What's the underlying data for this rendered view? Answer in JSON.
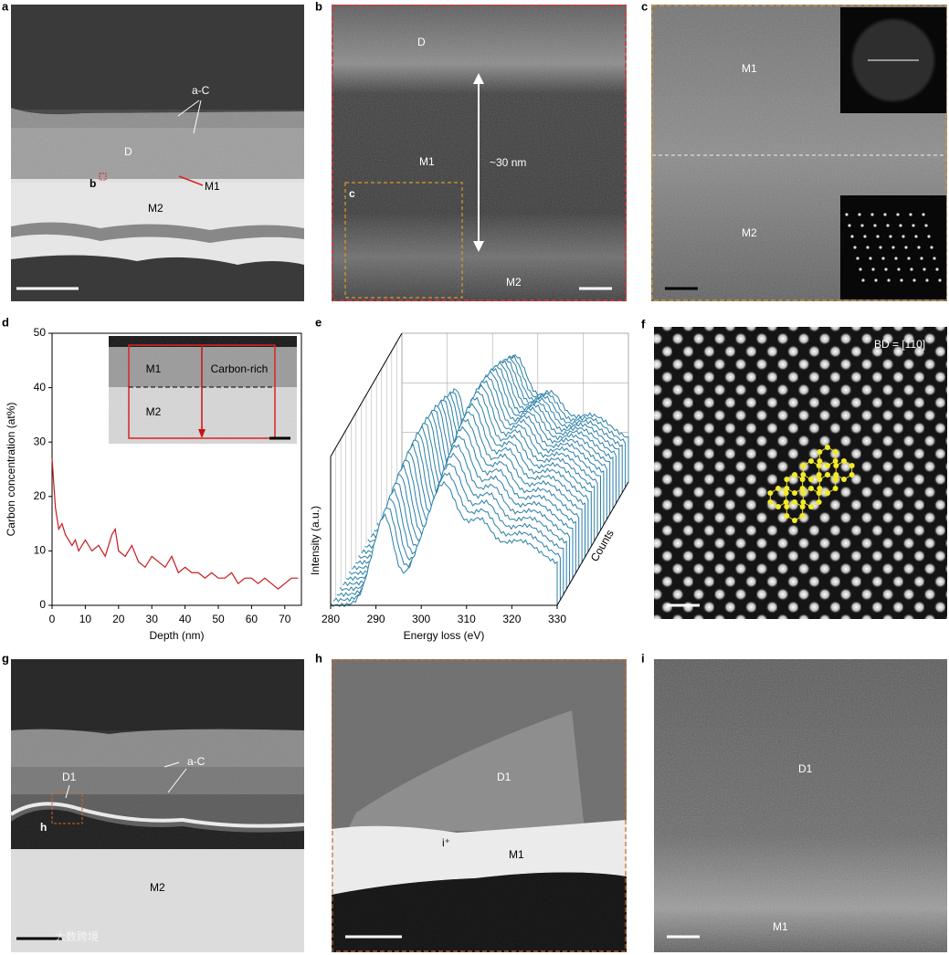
{
  "figure": {
    "panels": [
      {
        "letter": "a",
        "labels": [
          "a-C",
          "D",
          "b",
          "M1",
          "M2"
        ]
      },
      {
        "letter": "b",
        "labels": [
          "D",
          "M1",
          "~30 nm",
          "c",
          "M2"
        ]
      },
      {
        "letter": "c",
        "labels": [
          "M1",
          "M2"
        ]
      },
      {
        "letter": "d",
        "labels": [
          "M1",
          "Carbon-rich",
          "M2"
        ]
      },
      {
        "letter": "e"
      },
      {
        "letter": "f",
        "labels": [
          "BD = [110]"
        ]
      },
      {
        "letter": "g",
        "labels": [
          "a-C",
          "D1",
          "h",
          "M2"
        ]
      },
      {
        "letter": "h",
        "labels": [
          "D1",
          "i⁺",
          "M1"
        ]
      },
      {
        "letter": "i",
        "labels": [
          "D1",
          "M1"
        ]
      }
    ],
    "watermark": "大数跨境"
  },
  "chart_data": [
    {
      "type": "line",
      "xlabel": "Depth (nm)",
      "ylabel": "Carbon concentration (at%)",
      "x": [
        0,
        1,
        2,
        3,
        4,
        5,
        6,
        7,
        8,
        9,
        10,
        12,
        14,
        16,
        18,
        19,
        20,
        22,
        24,
        26,
        28,
        30,
        32,
        34,
        36,
        38,
        40,
        42,
        44,
        46,
        48,
        50,
        52,
        54,
        56,
        58,
        60,
        62,
        64,
        66,
        68,
        70,
        72,
        74
      ],
      "series": [
        {
          "color": "#c8191e",
          "values": [
            27,
            18,
            14,
            15,
            13,
            12,
            11,
            12,
            10,
            11,
            12,
            10,
            11,
            9,
            13,
            14,
            10,
            9,
            11,
            8,
            7,
            9,
            8,
            7,
            9,
            6,
            7,
            6,
            6,
            5,
            6,
            5,
            5,
            6,
            4,
            5,
            5,
            4,
            5,
            4,
            3,
            4,
            5,
            5
          ]
        }
      ],
      "xlim": [
        0,
        75
      ],
      "ylim": [
        0,
        50
      ],
      "xticks": [
        0,
        10,
        20,
        30,
        40,
        50,
        60,
        70
      ],
      "yticks": [
        0,
        10,
        20,
        30,
        40,
        50
      ]
    },
    {
      "type": "waterfall",
      "xlabel": "Energy loss (eV)",
      "ylabel": "Intensity (a.u.)",
      "zlabel": "Counts",
      "xlim": [
        280,
        330
      ],
      "xticks": [
        280,
        290,
        300,
        310,
        320,
        330
      ]
    }
  ]
}
